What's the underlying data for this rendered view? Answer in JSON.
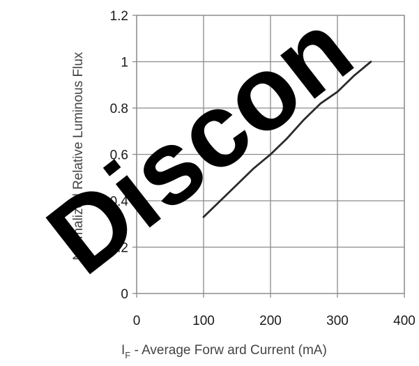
{
  "chart_data": {
    "type": "line",
    "x": [
      100,
      125,
      150,
      175,
      200,
      225,
      250,
      275,
      300,
      325,
      350
    ],
    "series": [
      {
        "values": [
          0.33,
          0.4,
          0.47,
          0.54,
          0.6,
          0.67,
          0.75,
          0.82,
          0.87,
          0.94,
          1.0
        ]
      }
    ],
    "xlabel_main": "I",
    "xlabel_sub": "F",
    "xlabel_rest": " - Average Forw ard Current (mA)",
    "ylabel": "Normalized Relative Luminous Flux",
    "xlim": [
      0,
      400
    ],
    "ylim": [
      0,
      1.2
    ],
    "xticks": [
      "0",
      "100",
      "200",
      "300",
      "400"
    ],
    "yticks": [
      "0",
      "0.2",
      "0.4",
      "0.6",
      "0.8",
      "1",
      "1.2"
    ],
    "grid": true,
    "colors": {
      "line": "#2a2a2a",
      "grid": "#8a8a8a",
      "watermark": "#000000"
    }
  },
  "watermark": "Discon"
}
